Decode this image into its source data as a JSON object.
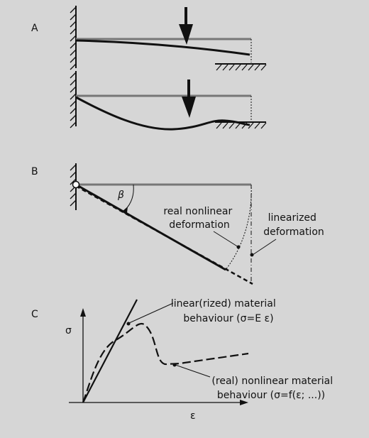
{
  "panels": {
    "a": "A",
    "b": "B",
    "c": "C"
  },
  "panel_b": {
    "angle_symbol": "β",
    "real_label": [
      "real nonlinear",
      "deformation"
    ],
    "linear_label": [
      "linearized",
      "deformation"
    ]
  },
  "panel_c": {
    "y_axis": "σ",
    "x_axis": "ε",
    "linear_label": [
      "linear(rized) material",
      "behaviour (σ=E ε)"
    ],
    "nonlinear_label": [
      "(real) nonlinear material",
      "behaviour (σ=f(ε; ...))"
    ]
  },
  "colors": {
    "background": "#d6d6d6",
    "ink": "#111111",
    "beam_reference": "#777777"
  }
}
